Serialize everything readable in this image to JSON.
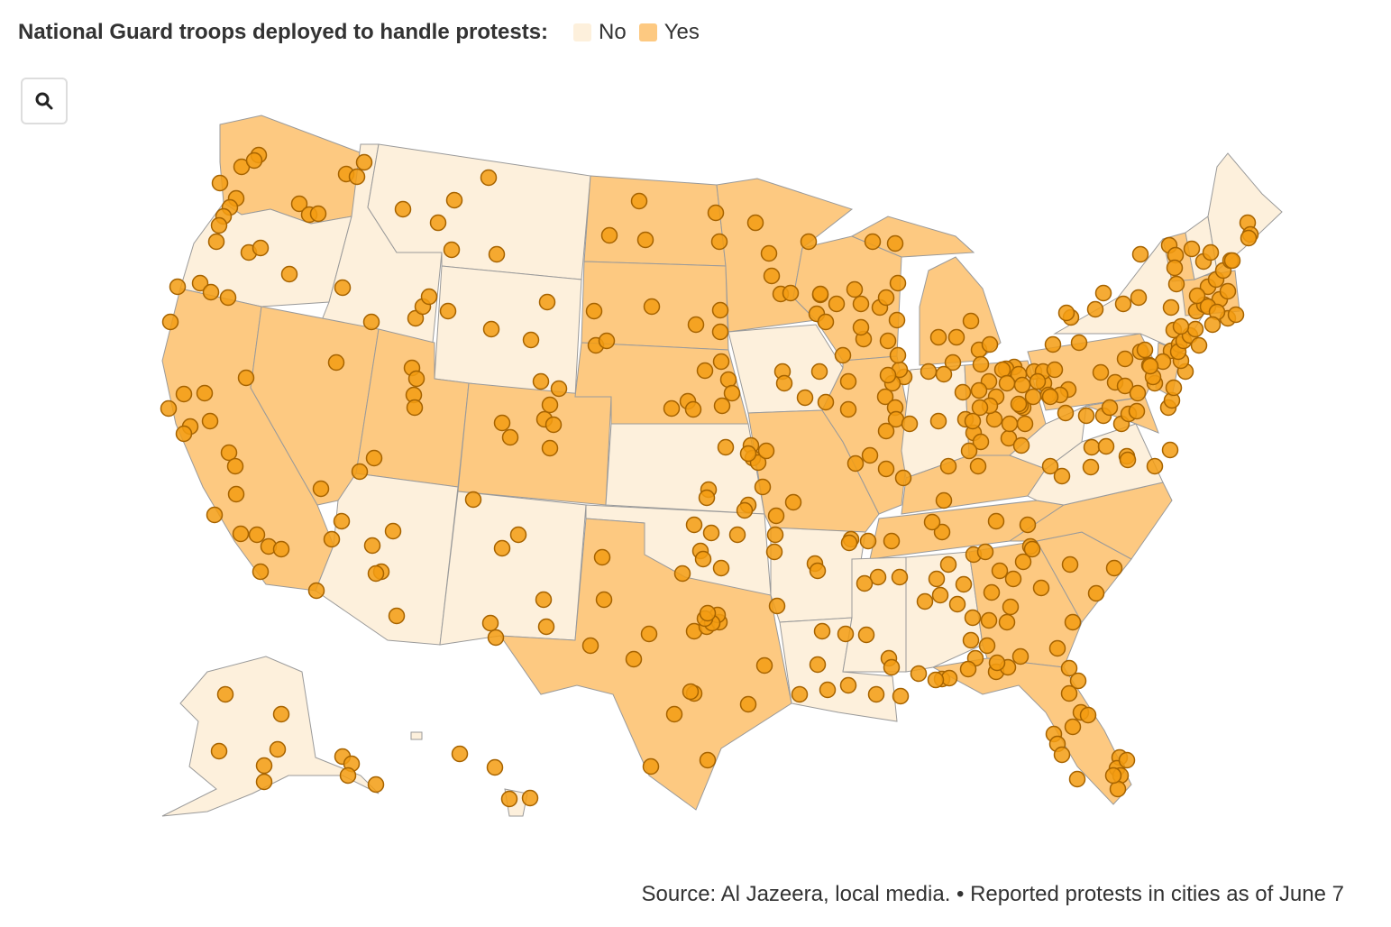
{
  "legend": {
    "title": "National Guard troops deployed to handle protests:",
    "items": [
      {
        "label": "No",
        "color": "#fdf0dc"
      },
      {
        "label": "Yes",
        "color": "#fdc981"
      }
    ]
  },
  "search": {
    "icon": "search-icon"
  },
  "colors": {
    "no": "#fdf0dc",
    "yes": "#fdc981",
    "dot": "#f39c12",
    "dot_stroke": "#a66300",
    "border": "#9a9a9a"
  },
  "footer": {
    "source": "Source: Al Jazeera, local media. • Reported protests in cities as of June 7"
  }
}
